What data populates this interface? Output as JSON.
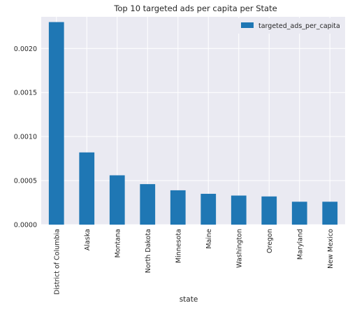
{
  "chart_data": {
    "type": "bar",
    "title": "Top 10 targeted ads per capita per State",
    "xlabel": "state",
    "ylabel": "",
    "categories": [
      "District of Columbia",
      "Alaska",
      "Montana",
      "North Dakota",
      "Minnesota",
      "Maine",
      "Washington",
      "Oregon",
      "Maryland",
      "New Mexico"
    ],
    "series": [
      {
        "name": "targeted_ads_per_capita",
        "values": [
          0.0023,
          0.00082,
          0.00056,
          0.00046,
          0.00039,
          0.00035,
          0.00033,
          0.00032,
          0.00026,
          0.00026
        ]
      }
    ],
    "ylim": [
      0,
      0.00236
    ],
    "yticks": [
      "0.0000",
      "0.0005",
      "0.0010",
      "0.0015",
      "0.0020"
    ],
    "ytick_values": [
      0,
      0.0005,
      0.001,
      0.0015,
      0.002
    ],
    "grid": true,
    "legend": "top-right",
    "colors": {
      "bar": "#1f77b4",
      "plot_background": "#eaeaf2",
      "grid": "#ffffff",
      "text": "#262626"
    }
  }
}
